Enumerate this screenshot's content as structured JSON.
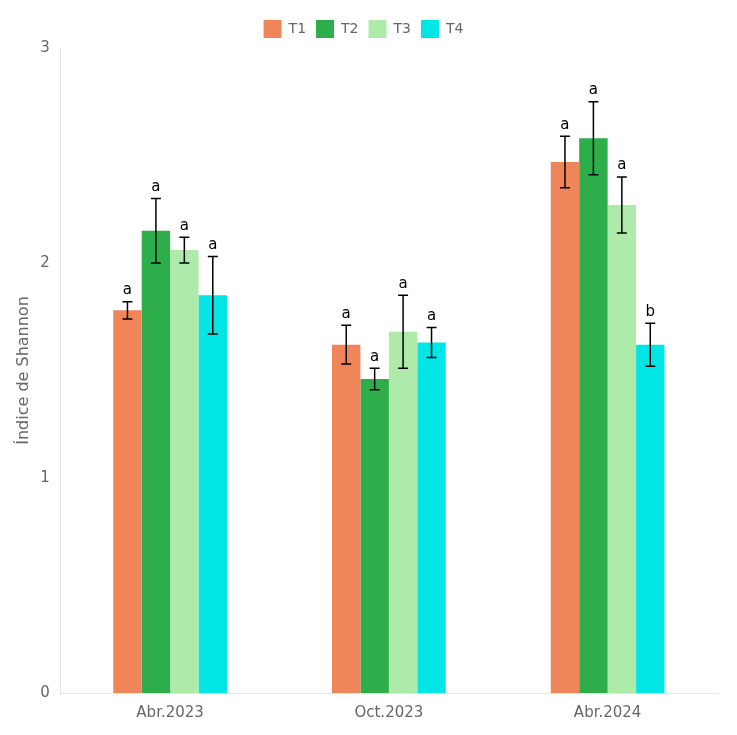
{
  "chart_data": {
    "type": "bar",
    "categories": [
      "Abr.2023",
      "Oct.2023",
      "Abr.2024"
    ],
    "series": [
      {
        "name": "T1",
        "color": "#F0855A",
        "values": [
          1.78,
          1.62,
          2.47
        ],
        "errors": [
          0.04,
          0.09,
          0.12
        ],
        "letters": [
          "a",
          "a",
          "a"
        ]
      },
      {
        "name": "T2",
        "color": "#2EAD4B",
        "values": [
          2.15,
          1.46,
          2.58
        ],
        "errors": [
          0.15,
          0.05,
          0.17
        ],
        "letters": [
          "a",
          "a",
          "a"
        ]
      },
      {
        "name": "T3",
        "color": "#AEEAAA",
        "values": [
          2.06,
          1.68,
          2.27
        ],
        "errors": [
          0.06,
          0.17,
          0.13
        ],
        "letters": [
          "a",
          "a",
          "a"
        ]
      },
      {
        "name": "T4",
        "color": "#00E5E5",
        "values": [
          1.85,
          1.63,
          1.62
        ],
        "errors": [
          0.18,
          0.07,
          0.1
        ],
        "letters": [
          "a",
          "a",
          "b"
        ]
      }
    ],
    "ylabel": "Índice de Shannon",
    "ylim": [
      0,
      3.0
    ],
    "yticks": [
      0,
      1,
      2,
      3
    ],
    "grid": false,
    "legend": "top"
  }
}
